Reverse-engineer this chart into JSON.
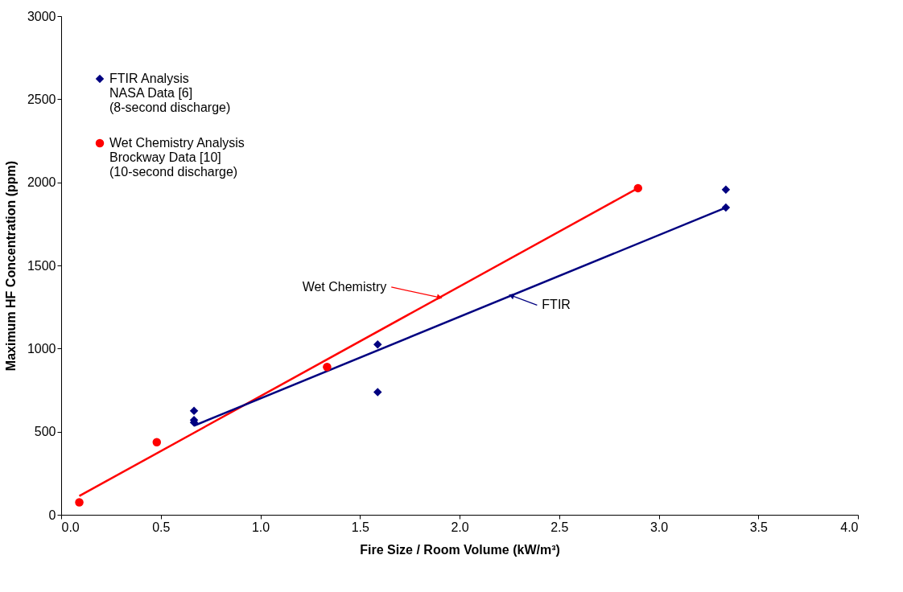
{
  "chart_data": {
    "type": "scatter",
    "xlabel": "Fire Size / Room Volume (kW/m³)",
    "ylabel": "Maximum HF Concentration (ppm)",
    "xlim": [
      0,
      4
    ],
    "ylim": [
      0,
      3000
    ],
    "xticks": [
      {
        "value": 0,
        "label": "0.0"
      },
      {
        "value": 0.5,
        "label": "0.5"
      },
      {
        "value": 1,
        "label": "1.0"
      },
      {
        "value": 1.5,
        "label": "1.5"
      },
      {
        "value": 2,
        "label": "2.0"
      },
      {
        "value": 2.5,
        "label": "2.5"
      },
      {
        "value": 3,
        "label": "3.0"
      },
      {
        "value": 3.5,
        "label": "3.5"
      },
      {
        "value": 4,
        "label": "4.0"
      }
    ],
    "yticks": [
      0,
      500,
      1000,
      1500,
      2000,
      2500,
      3000
    ],
    "grid": false,
    "legend": "top left",
    "series": [
      {
        "name": "FTIR Analysis\nNASA Data  [6]\n(8-second discharge)",
        "type": "scatter",
        "marker": "diamond",
        "color": "#000080",
        "x": [
          0.667,
          0.667,
          0.667,
          1.589,
          1.589,
          3.337,
          3.337
        ],
        "values": [
          625,
          570,
          555,
          1025,
          738,
          1956,
          1848
        ]
      },
      {
        "name": "Wet Chemistry Analysis\nBrockway Data  [10]\n(10-second discharge)",
        "type": "scatter",
        "marker": "circle",
        "color": "#ff0000",
        "x": [
          0.091,
          0.48,
          1.335,
          2.896
        ],
        "values": [
          75,
          437,
          889,
          1965
        ]
      },
      {
        "type": "line",
        "color": "#ff0000",
        "x": [
          0.091,
          2.896
        ],
        "values": [
          113,
          1965
        ]
      },
      {
        "type": "line",
        "color": "#000080",
        "x": [
          0.667,
          3.337
        ],
        "values": [
          536,
          1848
        ]
      }
    ],
    "annotations": [
      {
        "text": "Wet Chemistry",
        "x": 1.9,
        "y": 1307
      },
      {
        "text": "FTIR",
        "x": 2.26,
        "y": 1319
      }
    ]
  }
}
